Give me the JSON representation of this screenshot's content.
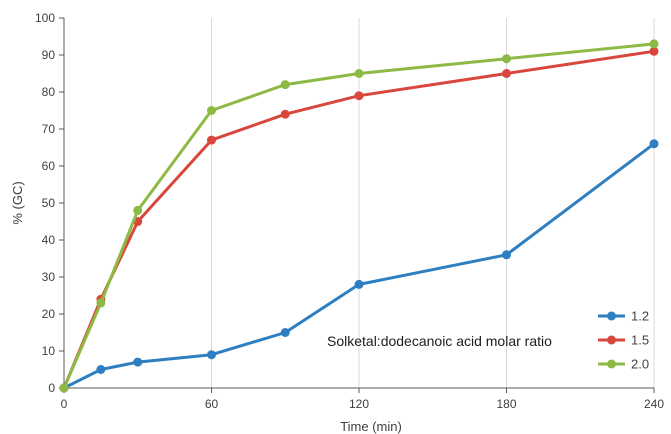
{
  "chart_data": {
    "type": "line",
    "xlabel": "Time (min)",
    "ylabel": "% (GC)",
    "annotation": "Solketal:dodecanoic acid molar ratio",
    "xlim": [
      0,
      240
    ],
    "ylim": [
      0,
      100
    ],
    "xticks": [
      0,
      60,
      120,
      180,
      240
    ],
    "yticks": [
      0,
      10,
      20,
      30,
      40,
      50,
      60,
      70,
      80,
      90,
      100
    ],
    "grid": "vertical",
    "legend_position": "bottom-right",
    "x": [
      0,
      15,
      30,
      60,
      90,
      120,
      180,
      240
    ],
    "series": [
      {
        "name": "1.2",
        "color": "#2E7FC1",
        "values": [
          0,
          5,
          7,
          9,
          15,
          28,
          36,
          66
        ]
      },
      {
        "name": "1.5",
        "color": "#D9463B",
        "values": [
          0,
          24,
          45,
          67,
          74,
          79,
          85,
          91
        ]
      },
      {
        "name": "2.0",
        "color": "#8DBA45",
        "values": [
          0,
          23,
          48,
          75,
          82,
          85,
          89,
          93
        ]
      }
    ]
  }
}
